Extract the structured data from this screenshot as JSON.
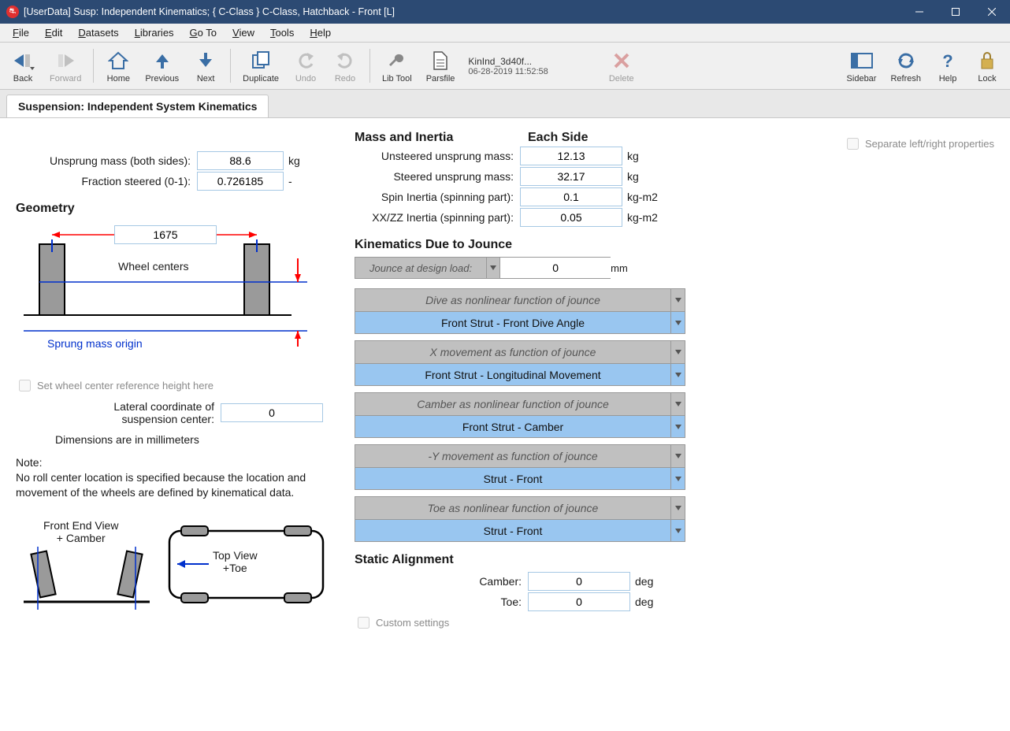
{
  "window": {
    "title": "[UserData] Susp: Independent Kinematics; { C-Class } C-Class, Hatchback - Front [L]"
  },
  "menu": {
    "items": [
      "File",
      "Edit",
      "Datasets",
      "Libraries",
      "Go To",
      "View",
      "Tools",
      "Help"
    ]
  },
  "toolbar": {
    "back": "Back",
    "forward": "Forward",
    "home": "Home",
    "previous": "Previous",
    "next": "Next",
    "duplicate": "Duplicate",
    "undo": "Undo",
    "redo": "Redo",
    "libtool": "Lib Tool",
    "parsfile": "Parsfile",
    "file_name": "KinInd_3d40f...",
    "file_date": "06-28-2019 11:52:58",
    "delete": "Delete",
    "sidebar": "Sidebar",
    "refresh": "Refresh",
    "help": "Help",
    "lock": "Lock"
  },
  "tab": {
    "title": "Suspension: Independent System Kinematics"
  },
  "left": {
    "unsprung_mass_label": "Unsprung mass (both sides):",
    "unsprung_mass_value": "88.6",
    "unsprung_mass_unit": "kg",
    "fraction_steered_label": "Fraction steered (0-1):",
    "fraction_steered_value": "0.726185",
    "fraction_steered_unit": "-",
    "geometry_title": "Geometry",
    "track_value": "1675",
    "wheel_centers_label": "Wheel centers",
    "sprung_origin_label": "Sprung mass origin",
    "set_wheel_center_label": "Set wheel center reference height here",
    "lat_coord_label1": "Lateral coordinate of",
    "lat_coord_label2": "suspension center:",
    "lat_coord_value": "0",
    "dims_note": "Dimensions are in millimeters",
    "note_title": "Note:",
    "note_body": "No roll center location is specified because the location and movement of the wheels are defined by  kinematical data.",
    "front_end_view1": "Front End View",
    "front_end_view2": "+ Camber",
    "top_view1": "Top View",
    "top_view2": "+Toe"
  },
  "mid": {
    "mass_inertia_title": "Mass and Inertia",
    "each_side_title": "Each Side",
    "unsteered_label": "Unsteered unsprung  mass:",
    "unsteered_value": "12.13",
    "unsteered_unit": "kg",
    "steered_label": "Steered unsprung mass:",
    "steered_value": "32.17",
    "steered_unit": "kg",
    "spin_label": "Spin Inertia (spinning part):",
    "spin_value": "0.1",
    "spin_unit": "kg-m2",
    "xxzz_label": "XX/ZZ Inertia (spinning part):",
    "xxzz_value": "0.05",
    "xxzz_unit": "kg-m2",
    "kin_title": "Kinematics Due to Jounce",
    "jounce_label": "Jounce at design load:",
    "jounce_value": "0",
    "jounce_unit": "mm",
    "blocks": [
      {
        "hdr": "Dive as nonlinear function of jounce",
        "sel": "Front Strut - Front Dive Angle"
      },
      {
        "hdr": "X movement as function of jounce",
        "sel": "Front Strut -  Longitudinal Movement"
      },
      {
        "hdr": "Camber as nonlinear function of jounce",
        "sel": "Front Strut - Camber"
      },
      {
        "hdr": "-Y movement as function of jounce",
        "sel": "Strut - Front"
      },
      {
        "hdr": "Toe as nonlinear function of jounce",
        "sel": "Strut - Front"
      }
    ],
    "static_title": "Static Alignment",
    "camber_label": "Camber:",
    "camber_value": "0",
    "camber_unit": "deg",
    "toe_label": "Toe:",
    "toe_value": "0",
    "toe_unit": "deg",
    "custom_label": "Custom settings"
  },
  "right": {
    "separate_label": "Separate left/right properties"
  },
  "colors": {
    "titlebar": "#2c4a73",
    "kin_header": "#c0c0c0",
    "kin_sel": "#99c6f0",
    "input_border": "#a6c8e4",
    "link_blue": "#0030cc",
    "arrow_red": "#ff0000"
  }
}
